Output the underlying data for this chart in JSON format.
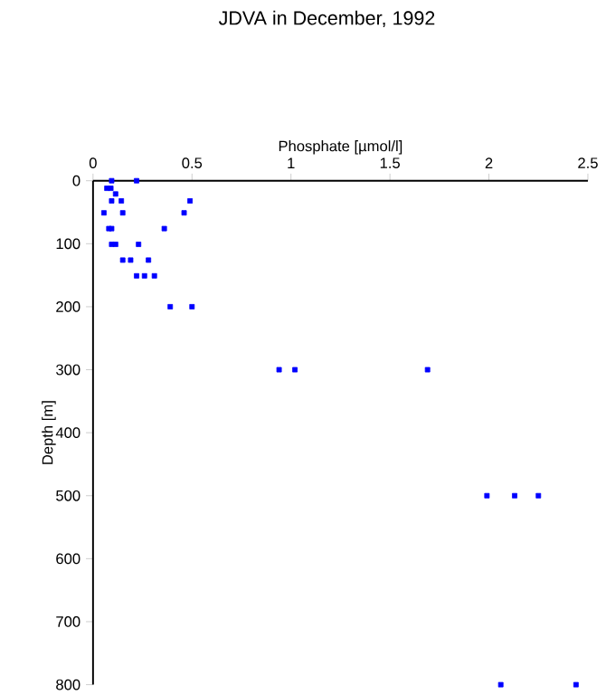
{
  "chart_data": {
    "type": "scatter",
    "title": "JDVA in December, 1992",
    "xlabel": "Phosphate [µmol/l]",
    "ylabel": "Depth [m]",
    "x": [
      0.094,
      0.22,
      0.07,
      0.09,
      0.114,
      0.094,
      0.143,
      0.49,
      0.055,
      0.15,
      0.46,
      0.08,
      0.094,
      0.36,
      0.094,
      0.114,
      0.23,
      0.15,
      0.19,
      0.28,
      0.22,
      0.26,
      0.31,
      0.39,
      0.5,
      0.94,
      1.02,
      1.69,
      1.99,
      2.13,
      2.25,
      2.06,
      2.44
    ],
    "values": [
      0,
      0,
      12,
      12,
      21,
      32,
      32,
      32,
      51,
      51,
      51,
      76,
      76,
      76,
      101,
      101,
      101,
      126,
      126,
      126,
      151,
      151,
      151,
      200,
      200,
      300,
      300,
      300,
      500,
      500,
      500,
      800,
      800
    ],
    "color": "#0000ff",
    "marker": "square",
    "xlim": [
      0,
      2.5
    ],
    "xticks": [
      0,
      0.5,
      1,
      1.5,
      2,
      2.5
    ],
    "ylim": [
      800,
      0
    ],
    "yticks": [
      0,
      100,
      200,
      300,
      400,
      500,
      600,
      700,
      800
    ],
    "grid": false
  }
}
